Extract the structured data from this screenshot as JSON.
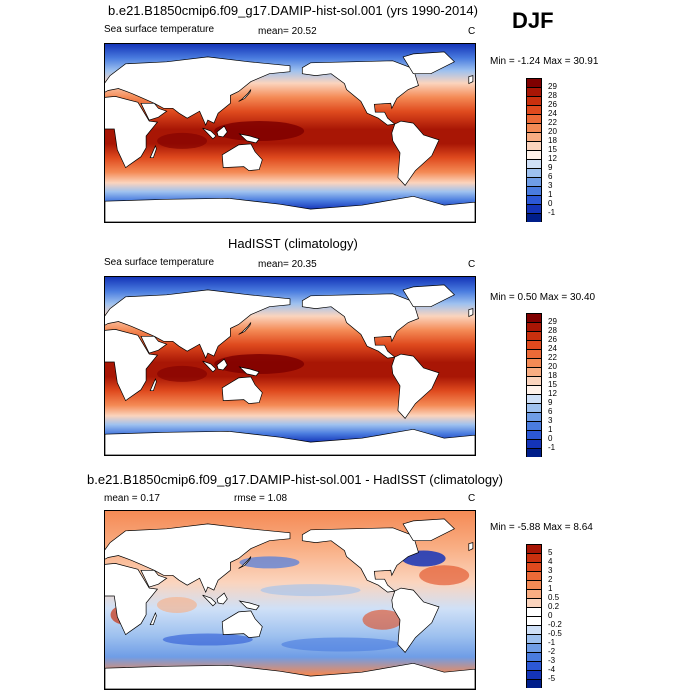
{
  "season": "DJF",
  "panels": [
    {
      "title": "b.e21.B1850cmip6.f09_g17.DAMIP-hist-sol.001 (yrs 1990-2014)",
      "left_label": "Sea surface temperature",
      "stat_label": "mean=  20.52",
      "units": "C",
      "minmax": "Min = -1.24 Max =  30.91",
      "colorbar": {
        "labels": [
          "29",
          "28",
          "26",
          "24",
          "22",
          "20",
          "18",
          "15",
          "12",
          "9",
          "6",
          "3",
          "1",
          "0",
          "-1"
        ],
        "colors": [
          "#7f0000",
          "#a81605",
          "#c9300e",
          "#df4a1e",
          "#ec6a37",
          "#f48a55",
          "#f9ad82",
          "#fbd4bd",
          "#fff2ea",
          "#cfe0f7",
          "#9ec1ef",
          "#6f9de6",
          "#4a7cdf",
          "#2c58d6",
          "#1434b8",
          "#001e8a"
        ]
      },
      "field": "sst_model"
    },
    {
      "title": "HadISST (climatology)",
      "left_label": "Sea surface temperature",
      "stat_label": "mean=  20.35",
      "units": "C",
      "minmax": "Min =  0.50 Max =  30.40",
      "colorbar": {
        "labels": [
          "29",
          "28",
          "26",
          "24",
          "22",
          "20",
          "18",
          "15",
          "12",
          "9",
          "6",
          "3",
          "1",
          "0",
          "-1"
        ],
        "colors": [
          "#7f0000",
          "#a81605",
          "#c9300e",
          "#df4a1e",
          "#ec6a37",
          "#f48a55",
          "#f9ad82",
          "#fbd4bd",
          "#fff2ea",
          "#cfe0f7",
          "#9ec1ef",
          "#6f9de6",
          "#4a7cdf",
          "#2c58d6",
          "#1434b8",
          "#001e8a"
        ]
      },
      "field": "sst_obs"
    },
    {
      "title": "b.e21.B1850cmip6.f09_g17.DAMIP-hist-sol.001 - HadISST (climatology)",
      "left_label": "mean =   0.17",
      "stat_label": "rmse =   1.08",
      "units": "C",
      "minmax": "Min = -5.88 Max =  8.64",
      "colorbar": {
        "labels": [
          "5",
          "4",
          "3",
          "2",
          "1",
          "0.5",
          "0.2",
          "0",
          "-0.2",
          "-0.5",
          "-1",
          "-2",
          "-3",
          "-4",
          "-5"
        ],
        "colors": [
          "#a81605",
          "#c9300e",
          "#df4a1e",
          "#ec6a37",
          "#f48a55",
          "#f9ad82",
          "#fbd4bd",
          "#ffffff",
          "#ffffff",
          "#cfe0f7",
          "#9ec1ef",
          "#6f9de6",
          "#4a7cdf",
          "#2c58d6",
          "#1434b8",
          "#001e8a"
        ]
      },
      "field": "sst_diff"
    }
  ]
}
